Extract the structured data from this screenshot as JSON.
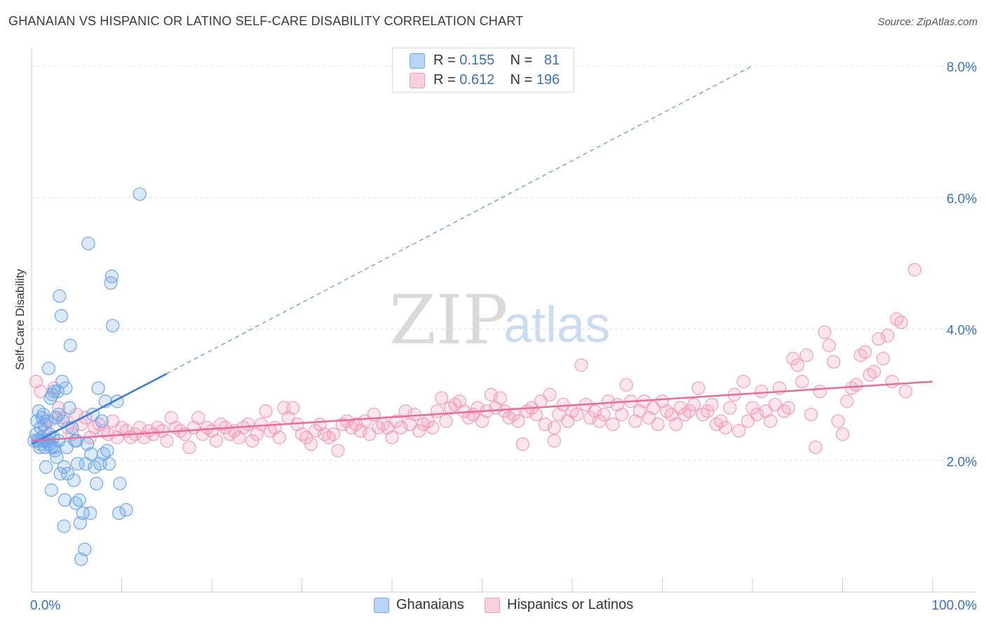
{
  "title": "GHANAIAN VS HISPANIC OR LATINO SELF-CARE DISABILITY CORRELATION CHART",
  "source": "Source: ZipAtlas.com",
  "watermark": {
    "zip": "ZIP",
    "atlas": "atlas"
  },
  "legend_top": [
    {
      "r_label": "R =",
      "r_value": "0.155",
      "n_label": "N =",
      "n_value": "81",
      "color": "#6ea6e8"
    },
    {
      "r_label": "R =",
      "r_value": "0.612",
      "n_label": "N =",
      "n_value": "196",
      "color": "#f29bb8"
    }
  ],
  "legend_bottom": [
    {
      "label": "Ghanaians",
      "color": "#6ea6e8"
    },
    {
      "label": "Hispanics or Latinos",
      "color": "#f29bb8"
    }
  ],
  "chart_data": {
    "type": "scatter",
    "title": "GHANAIAN VS HISPANIC OR LATINO SELF-CARE DISABILITY CORRELATION CHART",
    "ylabel": "Self-Care Disability",
    "xlabel": "",
    "x_tick_labels": [
      "0.0%",
      "100.0%"
    ],
    "y_tick_labels": [
      "2.0%",
      "4.0%",
      "6.0%",
      "8.0%"
    ],
    "y_tick_values": [
      2.0,
      4.0,
      6.0,
      8.0
    ],
    "xlim": [
      0,
      100
    ],
    "ylim": [
      0,
      8.0
    ],
    "grid": "horizontal dashed",
    "legend_position": "top-center",
    "series": [
      {
        "name": "Ghanaians",
        "color": "#6ea6e8",
        "trend": {
          "x": [
            0,
            15
          ],
          "y": [
            2.25,
            3.32
          ],
          "extended_to": [
            80,
            8.0
          ]
        },
        "points": [
          [
            0.3,
            2.3
          ],
          [
            0.5,
            2.4
          ],
          [
            0.6,
            2.6
          ],
          [
            0.8,
            2.75
          ],
          [
            0.9,
            2.2
          ],
          [
            1.0,
            2.5
          ],
          [
            1.1,
            2.35
          ],
          [
            1.2,
            2.3
          ],
          [
            1.3,
            2.7
          ],
          [
            1.4,
            2.55
          ],
          [
            1.5,
            2.2
          ],
          [
            1.6,
            1.9
          ],
          [
            1.7,
            2.6
          ],
          [
            1.8,
            2.3
          ],
          [
            1.9,
            3.4
          ],
          [
            2.0,
            2.25
          ],
          [
            2.1,
            2.95
          ],
          [
            2.2,
            2.2
          ],
          [
            2.3,
            3.0
          ],
          [
            2.4,
            2.35
          ],
          [
            2.5,
            3.05
          ],
          [
            2.6,
            2.15
          ],
          [
            2.7,
            2.65
          ],
          [
            2.8,
            2.05
          ],
          [
            2.9,
            3.05
          ],
          [
            3.0,
            2.7
          ],
          [
            3.1,
            4.5
          ],
          [
            3.2,
            1.8
          ],
          [
            3.3,
            4.2
          ],
          [
            3.4,
            3.2
          ],
          [
            3.5,
            2.6
          ],
          [
            3.6,
            1.9
          ],
          [
            3.7,
            1.4
          ],
          [
            3.8,
            3.1
          ],
          [
            3.9,
            2.2
          ],
          [
            4.0,
            1.8
          ],
          [
            4.2,
            2.8
          ],
          [
            4.3,
            3.75
          ],
          [
            4.5,
            2.5
          ],
          [
            4.7,
            1.7
          ],
          [
            4.8,
            2.3
          ],
          [
            5.0,
            2.3
          ],
          [
            5.1,
            1.95
          ],
          [
            5.3,
            1.4
          ],
          [
            5.4,
            1.05
          ],
          [
            5.5,
            0.5
          ],
          [
            5.7,
            1.2
          ],
          [
            5.9,
            0.65
          ],
          [
            6.0,
            1.95
          ],
          [
            6.2,
            2.25
          ],
          [
            6.3,
            5.3
          ],
          [
            6.5,
            1.2
          ],
          [
            6.8,
            2.7
          ],
          [
            7.0,
            1.9
          ],
          [
            7.2,
            1.65
          ],
          [
            7.4,
            3.1
          ],
          [
            7.6,
            1.95
          ],
          [
            7.8,
            2.6
          ],
          [
            8.0,
            2.1
          ],
          [
            8.2,
            2.9
          ],
          [
            8.4,
            2.15
          ],
          [
            8.6,
            1.95
          ],
          [
            8.8,
            4.7
          ],
          [
            8.9,
            4.8
          ],
          [
            9.0,
            4.05
          ],
          [
            9.5,
            2.9
          ],
          [
            9.7,
            1.2
          ],
          [
            9.8,
            1.65
          ],
          [
            10.5,
            1.25
          ],
          [
            12.0,
            6.05
          ],
          [
            1.0,
            2.25
          ],
          [
            1.5,
            2.3
          ],
          [
            2.0,
            2.4
          ],
          [
            2.5,
            2.2
          ],
          [
            3.0,
            2.3
          ],
          [
            2.2,
            1.55
          ],
          [
            3.6,
            1.0
          ],
          [
            4.9,
            1.35
          ],
          [
            0.7,
            2.3
          ],
          [
            1.2,
            2.65
          ],
          [
            6.6,
            2.1
          ]
        ]
      },
      {
        "name": "Hispanics or Latinos",
        "color": "#f29bb8",
        "trend": {
          "x": [
            0,
            100
          ],
          "y": [
            2.3,
            3.2
          ]
        },
        "points": [
          [
            0.5,
            3.2
          ],
          [
            1.0,
            3.05
          ],
          [
            1.5,
            2.45
          ],
          [
            2.0,
            2.6
          ],
          [
            2.5,
            3.1
          ],
          [
            3.0,
            2.8
          ],
          [
            3.5,
            2.65
          ],
          [
            4.0,
            2.5
          ],
          [
            4.5,
            2.4
          ],
          [
            5.0,
            2.7
          ],
          [
            5.5,
            2.55
          ],
          [
            6.0,
            2.65
          ],
          [
            6.5,
            2.35
          ],
          [
            7.0,
            2.5
          ],
          [
            7.5,
            2.55
          ],
          [
            8.0,
            2.45
          ],
          [
            8.5,
            2.4
          ],
          [
            9.0,
            2.6
          ],
          [
            9.5,
            2.35
          ],
          [
            10.0,
            2.5
          ],
          [
            10.5,
            2.45
          ],
          [
            11.0,
            2.35
          ],
          [
            11.5,
            2.4
          ],
          [
            12.0,
            2.5
          ],
          [
            12.5,
            2.35
          ],
          [
            13.0,
            2.45
          ],
          [
            13.5,
            2.4
          ],
          [
            14.0,
            2.5
          ],
          [
            14.5,
            2.45
          ],
          [
            15.0,
            2.3
          ],
          [
            15.5,
            2.65
          ],
          [
            16.0,
            2.5
          ],
          [
            16.5,
            2.45
          ],
          [
            17.0,
            2.4
          ],
          [
            17.5,
            2.2
          ],
          [
            18.0,
            2.5
          ],
          [
            18.5,
            2.65
          ],
          [
            19.0,
            2.4
          ],
          [
            19.5,
            2.5
          ],
          [
            20.0,
            2.45
          ],
          [
            20.5,
            2.3
          ],
          [
            21.0,
            2.55
          ],
          [
            21.5,
            2.5
          ],
          [
            22.0,
            2.4
          ],
          [
            22.5,
            2.45
          ],
          [
            23.0,
            2.35
          ],
          [
            23.5,
            2.5
          ],
          [
            24.0,
            2.55
          ],
          [
            24.5,
            2.3
          ],
          [
            25.0,
            2.4
          ],
          [
            25.5,
            2.55
          ],
          [
            26.0,
            2.75
          ],
          [
            26.5,
            2.45
          ],
          [
            27.0,
            2.5
          ],
          [
            27.5,
            2.35
          ],
          [
            28.0,
            2.8
          ],
          [
            28.5,
            2.65
          ],
          [
            29.0,
            2.8
          ],
          [
            29.5,
            2.55
          ],
          [
            30.0,
            2.4
          ],
          [
            30.5,
            2.35
          ],
          [
            31.0,
            2.25
          ],
          [
            31.5,
            2.45
          ],
          [
            32.0,
            2.55
          ],
          [
            32.5,
            2.4
          ],
          [
            33.0,
            2.35
          ],
          [
            33.5,
            2.4
          ],
          [
            34.0,
            2.15
          ],
          [
            34.5,
            2.55
          ],
          [
            35.0,
            2.6
          ],
          [
            35.5,
            2.5
          ],
          [
            36.0,
            2.55
          ],
          [
            36.5,
            2.45
          ],
          [
            37.0,
            2.6
          ],
          [
            37.5,
            2.4
          ],
          [
            38.0,
            2.7
          ],
          [
            38.5,
            2.5
          ],
          [
            39.0,
            2.55
          ],
          [
            39.5,
            2.5
          ],
          [
            40.0,
            2.35
          ],
          [
            40.5,
            2.6
          ],
          [
            41.0,
            2.5
          ],
          [
            41.5,
            2.75
          ],
          [
            42.0,
            2.55
          ],
          [
            42.5,
            2.7
          ],
          [
            43.0,
            2.45
          ],
          [
            43.5,
            2.55
          ],
          [
            44.0,
            2.6
          ],
          [
            44.5,
            2.5
          ],
          [
            45.0,
            2.75
          ],
          [
            45.5,
            2.95
          ],
          [
            46.0,
            2.6
          ],
          [
            46.5,
            2.8
          ],
          [
            47.0,
            2.85
          ],
          [
            47.5,
            2.9
          ],
          [
            48.0,
            2.75
          ],
          [
            48.5,
            2.65
          ],
          [
            49.0,
            2.7
          ],
          [
            49.5,
            2.8
          ],
          [
            50.0,
            2.6
          ],
          [
            50.5,
            2.75
          ],
          [
            51.0,
            3.0
          ],
          [
            51.5,
            2.8
          ],
          [
            52.0,
            2.95
          ],
          [
            52.5,
            2.75
          ],
          [
            53.0,
            2.65
          ],
          [
            53.5,
            2.7
          ],
          [
            54.0,
            2.6
          ],
          [
            54.5,
            2.25
          ],
          [
            55.0,
            2.75
          ],
          [
            55.5,
            2.8
          ],
          [
            56.0,
            2.7
          ],
          [
            56.5,
            2.9
          ],
          [
            57.0,
            2.55
          ],
          [
            57.5,
            3.0
          ],
          [
            58.0,
            2.3
          ],
          [
            58.5,
            2.7
          ],
          [
            59.0,
            2.85
          ],
          [
            59.5,
            2.6
          ],
          [
            60.0,
            2.75
          ],
          [
            60.5,
            2.7
          ],
          [
            61.0,
            3.45
          ],
          [
            61.5,
            2.85
          ],
          [
            62.0,
            2.65
          ],
          [
            62.5,
            2.75
          ],
          [
            63.0,
            2.6
          ],
          [
            63.5,
            2.7
          ],
          [
            64.0,
            2.9
          ],
          [
            64.5,
            2.55
          ],
          [
            65.0,
            2.85
          ],
          [
            65.5,
            2.7
          ],
          [
            66.0,
            3.15
          ],
          [
            66.5,
            2.9
          ],
          [
            67.0,
            2.6
          ],
          [
            67.5,
            2.75
          ],
          [
            68.0,
            2.9
          ],
          [
            68.5,
            2.65
          ],
          [
            69.0,
            2.8
          ],
          [
            69.5,
            2.55
          ],
          [
            70.0,
            2.9
          ],
          [
            70.5,
            2.75
          ],
          [
            71.0,
            2.7
          ],
          [
            71.5,
            2.55
          ],
          [
            72.0,
            2.8
          ],
          [
            72.5,
            2.7
          ],
          [
            73.0,
            2.75
          ],
          [
            73.5,
            2.85
          ],
          [
            74.0,
            3.1
          ],
          [
            74.5,
            2.7
          ],
          [
            75.0,
            2.75
          ],
          [
            75.5,
            2.85
          ],
          [
            76.0,
            2.55
          ],
          [
            76.5,
            2.6
          ],
          [
            77.0,
            2.5
          ],
          [
            77.5,
            2.8
          ],
          [
            78.0,
            3.0
          ],
          [
            78.5,
            2.45
          ],
          [
            79.0,
            3.2
          ],
          [
            79.5,
            2.6
          ],
          [
            80.0,
            2.8
          ],
          [
            80.5,
            2.7
          ],
          [
            81.0,
            3.05
          ],
          [
            81.5,
            2.75
          ],
          [
            82.0,
            2.6
          ],
          [
            82.5,
            2.85
          ],
          [
            83.0,
            3.1
          ],
          [
            83.5,
            2.75
          ],
          [
            84.0,
            2.8
          ],
          [
            84.5,
            3.55
          ],
          [
            85.0,
            3.45
          ],
          [
            85.5,
            3.2
          ],
          [
            86.0,
            3.6
          ],
          [
            86.5,
            2.7
          ],
          [
            87.0,
            2.2
          ],
          [
            87.5,
            3.05
          ],
          [
            88.0,
            3.95
          ],
          [
            88.5,
            3.75
          ],
          [
            89.0,
            3.5
          ],
          [
            89.5,
            2.6
          ],
          [
            90.0,
            2.4
          ],
          [
            90.5,
            2.9
          ],
          [
            91.0,
            3.1
          ],
          [
            91.5,
            3.15
          ],
          [
            92.0,
            3.6
          ],
          [
            92.5,
            3.65
          ],
          [
            93.0,
            3.3
          ],
          [
            93.5,
            3.35
          ],
          [
            94.0,
            3.85
          ],
          [
            94.5,
            3.55
          ],
          [
            95.0,
            3.9
          ],
          [
            95.5,
            3.2
          ],
          [
            96.0,
            4.15
          ],
          [
            96.5,
            4.1
          ],
          [
            97.0,
            3.05
          ],
          [
            98.0,
            4.9
          ],
          [
            58.0,
            2.5
          ]
        ]
      }
    ]
  }
}
